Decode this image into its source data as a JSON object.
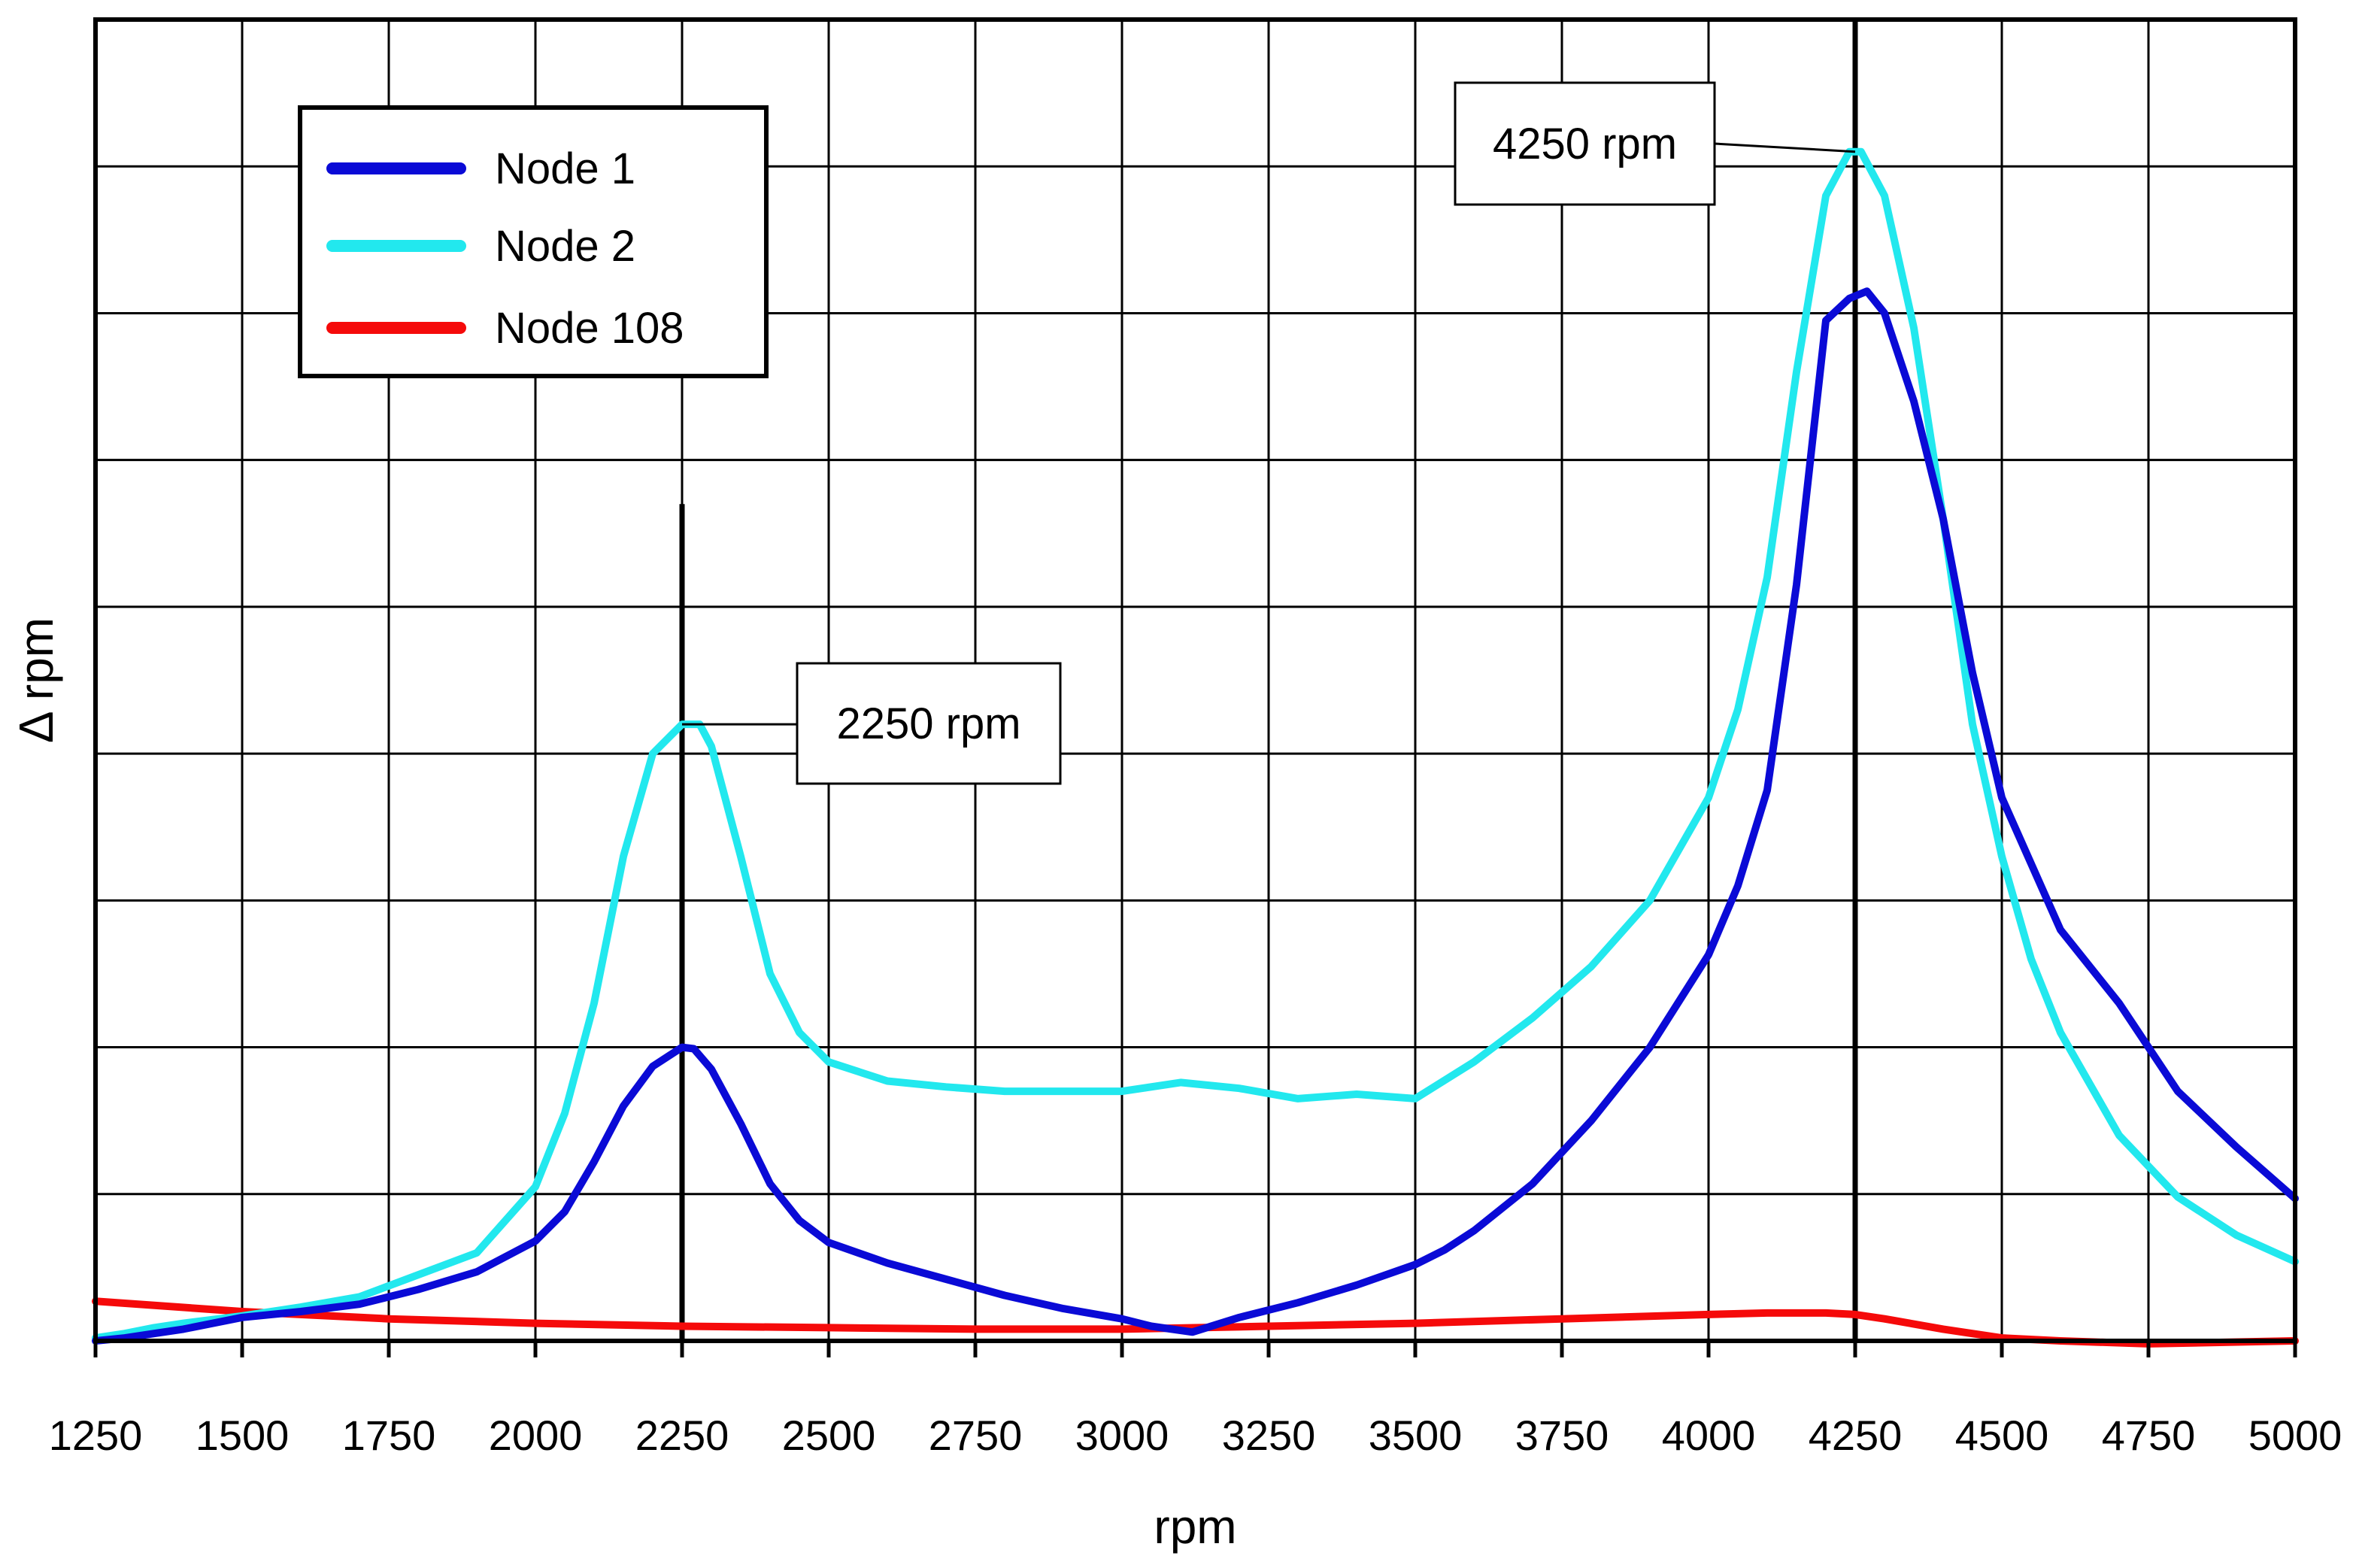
{
  "chart_data": {
    "type": "line",
    "title": "",
    "xlabel": "rpm",
    "ylabel": "Δ rpm",
    "xlim": [
      1250,
      5000
    ],
    "ylim": [
      0,
      9
    ],
    "grid": true,
    "x_ticks": [
      1250,
      1500,
      1750,
      2000,
      2250,
      2500,
      2750,
      3000,
      3250,
      3500,
      3750,
      4000,
      4250,
      4500,
      4750,
      5000
    ],
    "y_gridlines": [
      1,
      2,
      3,
      4,
      5,
      6,
      7,
      8
    ],
    "legend_position": "top-left",
    "series": [
      {
        "name": "Node 1",
        "color": "#0a0ad6",
        "x": [
          1250,
          1300,
          1350,
          1400,
          1500,
          1600,
          1700,
          1800,
          1900,
          2000,
          2050,
          2100,
          2150,
          2200,
          2250,
          2270,
          2300,
          2350,
          2400,
          2450,
          2500,
          2600,
          2700,
          2800,
          2900,
          3000,
          3050,
          3120,
          3200,
          3300,
          3400,
          3500,
          3550,
          3600,
          3700,
          3800,
          3900,
          4000,
          4050,
          4100,
          4150,
          4200,
          4240,
          4270,
          4300,
          4350,
          4400,
          4450,
          4500,
          4550,
          4600,
          4700,
          4800,
          4900,
          5000
        ],
        "y": [
          0,
          0.02,
          0.05,
          0.08,
          0.16,
          0.2,
          0.25,
          0.35,
          0.47,
          0.68,
          0.88,
          1.22,
          1.6,
          1.87,
          2.0,
          1.99,
          1.85,
          1.48,
          1.07,
          0.82,
          0.67,
          0.53,
          0.42,
          0.31,
          0.22,
          0.15,
          0.1,
          0.06,
          0.16,
          0.26,
          0.38,
          0.52,
          0.62,
          0.75,
          1.07,
          1.5,
          2.0,
          2.63,
          3.1,
          3.75,
          5.15,
          6.95,
          7.1,
          7.15,
          7.0,
          6.4,
          5.6,
          4.55,
          3.7,
          3.25,
          2.8,
          2.3,
          1.7,
          1.32,
          0.97
        ]
      },
      {
        "name": "Node 2",
        "color": "#22e8ee",
        "x": [
          1250,
          1300,
          1350,
          1400,
          1500,
          1600,
          1700,
          1800,
          1900,
          2000,
          2050,
          2100,
          2150,
          2200,
          2250,
          2280,
          2300,
          2350,
          2400,
          2450,
          2500,
          2600,
          2700,
          2800,
          2900,
          3000,
          3100,
          3200,
          3300,
          3400,
          3500,
          3600,
          3700,
          3800,
          3900,
          4000,
          4050,
          4100,
          4150,
          4200,
          4240,
          4260,
          4300,
          4350,
          4400,
          4450,
          4500,
          4550,
          4600,
          4700,
          4800,
          4900,
          5000
        ],
        "y": [
          0.02,
          0.05,
          0.09,
          0.12,
          0.17,
          0.23,
          0.3,
          0.45,
          0.6,
          1.05,
          1.55,
          2.3,
          3.3,
          4.0,
          4.2,
          4.2,
          4.05,
          3.3,
          2.5,
          2.1,
          1.9,
          1.77,
          1.73,
          1.7,
          1.7,
          1.7,
          1.76,
          1.72,
          1.65,
          1.68,
          1.65,
          1.9,
          2.2,
          2.55,
          3.0,
          3.7,
          4.3,
          5.2,
          6.6,
          7.8,
          8.1,
          8.1,
          7.8,
          6.9,
          5.6,
          4.2,
          3.3,
          2.6,
          2.1,
          1.4,
          0.98,
          0.72,
          0.54
        ]
      },
      {
        "name": "Node 108",
        "color": "#f50a0a",
        "x": [
          1250,
          1500,
          1750,
          2000,
          2250,
          2500,
          2750,
          3000,
          3250,
          3500,
          3750,
          4000,
          4100,
          4200,
          4250,
          4300,
          4400,
          4500,
          4600,
          4750,
          5000
        ],
        "y": [
          0.27,
          0.2,
          0.15,
          0.12,
          0.1,
          0.09,
          0.08,
          0.08,
          0.1,
          0.12,
          0.15,
          0.18,
          0.19,
          0.19,
          0.18,
          0.15,
          0.08,
          0.02,
          0.0,
          -0.02,
          0.0
        ]
      }
    ],
    "annotations": [
      {
        "text": "2250 rpm",
        "x": 2250,
        "y": 4.2
      },
      {
        "text": "4250 rpm",
        "x": 4250,
        "y": 8.1
      }
    ]
  }
}
